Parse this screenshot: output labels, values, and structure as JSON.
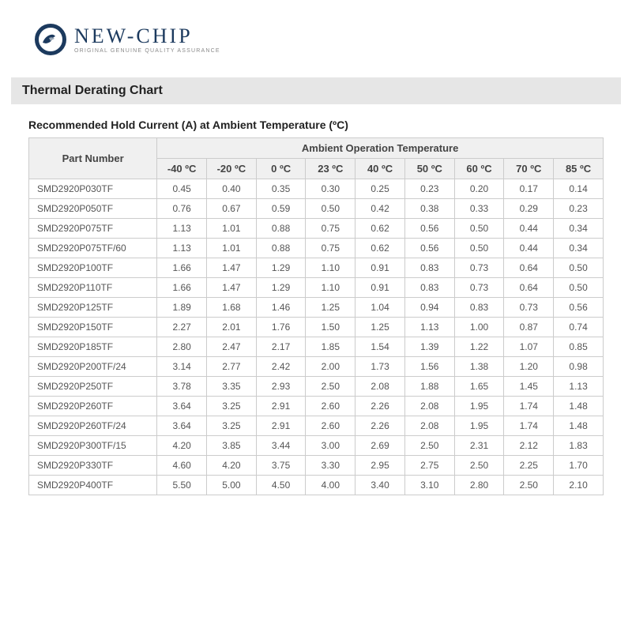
{
  "logo": {
    "name": "NEW-CHIP",
    "tagline": "ORIGINAL GENUINE QUALITY ASSURANCE"
  },
  "section_title": "Thermal Derating Chart",
  "subtitle": "Recommended Hold Current (A) at Ambient Temperature (ºC)",
  "table": {
    "part_header": "Part Number",
    "group_header": "Ambient Operation Temperature",
    "temps": [
      "-40 ºC",
      "-20 ºC",
      "0 ºC",
      "23 ºC",
      "40 ºC",
      "50 ºC",
      "60 ºC",
      "70 ºC",
      "85 ºC"
    ],
    "rows": [
      {
        "part": "SMD2920P030TF",
        "v": [
          "0.45",
          "0.40",
          "0.35",
          "0.30",
          "0.25",
          "0.23",
          "0.20",
          "0.17",
          "0.14"
        ]
      },
      {
        "part": "SMD2920P050TF",
        "v": [
          "0.76",
          "0.67",
          "0.59",
          "0.50",
          "0.42",
          "0.38",
          "0.33",
          "0.29",
          "0.23"
        ]
      },
      {
        "part": "SMD2920P075TF",
        "v": [
          "1.13",
          "1.01",
          "0.88",
          "0.75",
          "0.62",
          "0.56",
          "0.50",
          "0.44",
          "0.34"
        ]
      },
      {
        "part": "SMD2920P075TF/60",
        "v": [
          "1.13",
          "1.01",
          "0.88",
          "0.75",
          "0.62",
          "0.56",
          "0.50",
          "0.44",
          "0.34"
        ]
      },
      {
        "part": "SMD2920P100TF",
        "v": [
          "1.66",
          "1.47",
          "1.29",
          "1.10",
          "0.91",
          "0.83",
          "0.73",
          "0.64",
          "0.50"
        ]
      },
      {
        "part": "SMD2920P110TF",
        "v": [
          "1.66",
          "1.47",
          "1.29",
          "1.10",
          "0.91",
          "0.83",
          "0.73",
          "0.64",
          "0.50"
        ]
      },
      {
        "part": "SMD2920P125TF",
        "v": [
          "1.89",
          "1.68",
          "1.46",
          "1.25",
          "1.04",
          "0.94",
          "0.83",
          "0.73",
          "0.56"
        ]
      },
      {
        "part": "SMD2920P150TF",
        "v": [
          "2.27",
          "2.01",
          "1.76",
          "1.50",
          "1.25",
          "1.13",
          "1.00",
          "0.87",
          "0.74"
        ]
      },
      {
        "part": "SMD2920P185TF",
        "v": [
          "2.80",
          "2.47",
          "2.17",
          "1.85",
          "1.54",
          "1.39",
          "1.22",
          "1.07",
          "0.85"
        ]
      },
      {
        "part": "SMD2920P200TF/24",
        "v": [
          "3.14",
          "2.77",
          "2.42",
          "2.00",
          "1.73",
          "1.56",
          "1.38",
          "1.20",
          "0.98"
        ]
      },
      {
        "part": "SMD2920P250TF",
        "v": [
          "3.78",
          "3.35",
          "2.93",
          "2.50",
          "2.08",
          "1.88",
          "1.65",
          "1.45",
          "1.13"
        ]
      },
      {
        "part": "SMD2920P260TF",
        "v": [
          "3.64",
          "3.25",
          "2.91",
          "2.60",
          "2.26",
          "2.08",
          "1.95",
          "1.74",
          "1.48"
        ]
      },
      {
        "part": "SMD2920P260TF/24",
        "v": [
          "3.64",
          "3.25",
          "2.91",
          "2.60",
          "2.26",
          "2.08",
          "1.95",
          "1.74",
          "1.48"
        ]
      },
      {
        "part": "SMD2920P300TF/15",
        "v": [
          "4.20",
          "3.85",
          "3.44",
          "3.00",
          "2.69",
          "2.50",
          "2.31",
          "2.12",
          "1.83"
        ]
      },
      {
        "part": "SMD2920P330TF",
        "v": [
          "4.60",
          "4.20",
          "3.75",
          "3.30",
          "2.95",
          "2.75",
          "2.50",
          "2.25",
          "1.70"
        ]
      },
      {
        "part": "SMD2920P400TF",
        "v": [
          "5.50",
          "5.00",
          "4.50",
          "4.00",
          "3.40",
          "3.10",
          "2.80",
          "2.50",
          "2.10"
        ]
      }
    ]
  },
  "colors": {
    "brand": "#1c3a5e",
    "header_bg": "#f0f0f0",
    "section_bg": "#e6e6e6",
    "border": "#cccccc",
    "text": "#555555"
  },
  "typography": {
    "body_fontsize": 12,
    "header_fontsize": 13,
    "section_title_fontsize": 16,
    "subtitle_fontsize": 14
  }
}
